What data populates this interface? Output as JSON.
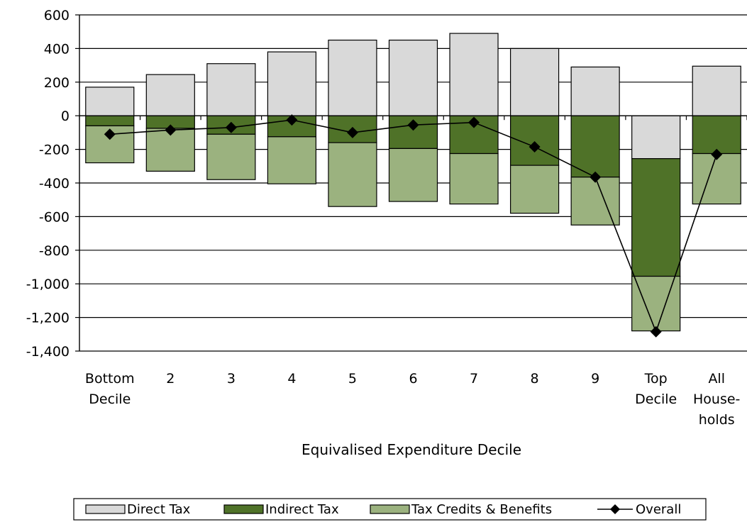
{
  "chart_data": {
    "type": "bar",
    "stacked": true,
    "xlabel": "Equivalised Expenditure Decile",
    "ylabel": "",
    "ylim": [
      -1400,
      600
    ],
    "ytick_values": [
      600,
      400,
      200,
      0,
      -200,
      -400,
      -600,
      -800,
      -1000,
      -1200,
      -1400
    ],
    "ytick_labels": [
      "600",
      "400",
      "200",
      "0",
      "-200",
      "-400",
      "-600",
      "-800",
      "-1,000",
      "-1,200",
      "-1,400"
    ],
    "grid": true,
    "legend_position": "bottom",
    "categories": [
      [
        "Bottom",
        "Decile"
      ],
      [
        "2"
      ],
      [
        "3"
      ],
      [
        "4"
      ],
      [
        "5"
      ],
      [
        "6"
      ],
      [
        "7"
      ],
      [
        "8"
      ],
      [
        "9"
      ],
      [
        "Top",
        "Decile"
      ],
      [
        "All",
        "House-",
        "holds"
      ]
    ],
    "series": [
      {
        "name": "Direct Tax",
        "kind": "bar",
        "color": "#d9d9d9",
        "values": [
          170,
          245,
          310,
          380,
          450,
          450,
          490,
          400,
          290,
          -255,
          295
        ]
      },
      {
        "name": "Indirect Tax",
        "kind": "bar",
        "color": "#4f7228",
        "values": [
          -60,
          -75,
          -110,
          -125,
          -160,
          -195,
          -225,
          -295,
          -365,
          -700,
          -225
        ]
      },
      {
        "name": "Tax Credits & Benefits",
        "kind": "bar",
        "color": "#9bb27f",
        "values": [
          -220,
          -255,
          -270,
          -280,
          -380,
          -315,
          -300,
          -285,
          -285,
          -325,
          -300
        ]
      },
      {
        "name": "Overall",
        "kind": "line",
        "color": "#000000",
        "values": [
          -110,
          -85,
          -70,
          -25,
          -100,
          -55,
          -40,
          -185,
          -365,
          -1285,
          -230
        ]
      }
    ]
  }
}
